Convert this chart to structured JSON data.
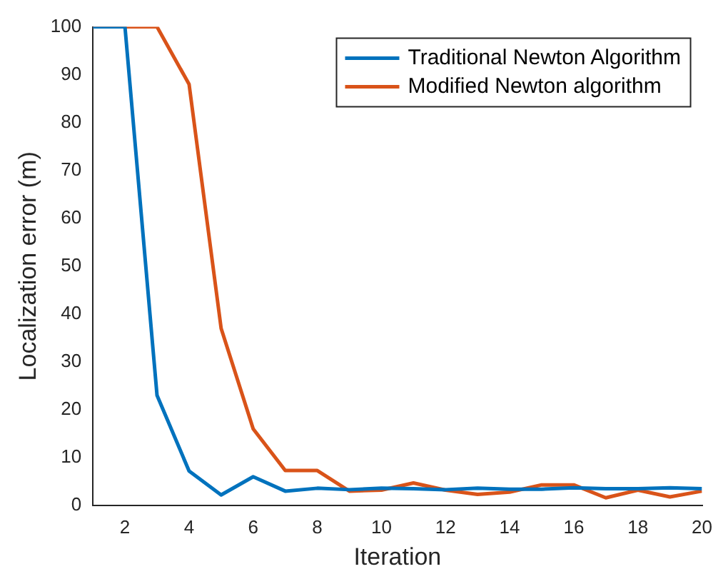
{
  "chart_data": {
    "type": "line",
    "xlabel": "Iteration",
    "ylabel": "Localization error (m)",
    "x": [
      1,
      2,
      3,
      4,
      5,
      6,
      7,
      8,
      9,
      10,
      11,
      12,
      13,
      14,
      15,
      16,
      17,
      18,
      19,
      20
    ],
    "series": [
      {
        "name": "Traditional Newton Algorithm",
        "color": "#0072bd",
        "values": [
          100,
          100,
          23,
          7.2,
          2.2,
          6,
          3,
          3.6,
          3.3,
          3.6,
          3.5,
          3.3,
          3.6,
          3.4,
          3.4,
          3.7,
          3.5,
          3.5,
          3.7,
          3.5
        ]
      },
      {
        "name": "Modified Newton algorithm",
        "color": "#d95319",
        "values": [
          100,
          100,
          100,
          88,
          37,
          16,
          7.3,
          7.3,
          3,
          3.2,
          4.7,
          3.2,
          2.3,
          2.8,
          4.3,
          4.3,
          1.6,
          3.2,
          1.8,
          3
        ]
      }
    ],
    "xlim": [
      1,
      20
    ],
    "xticks": [
      2,
      4,
      6,
      8,
      10,
      12,
      14,
      16,
      18,
      20
    ],
    "ylim": [
      0,
      100
    ],
    "yticks": [
      0,
      10,
      20,
      30,
      40,
      50,
      60,
      70,
      80,
      90,
      100
    ],
    "grid": false,
    "legend": "top right",
    "marker": "none",
    "line_style": "solid"
  }
}
